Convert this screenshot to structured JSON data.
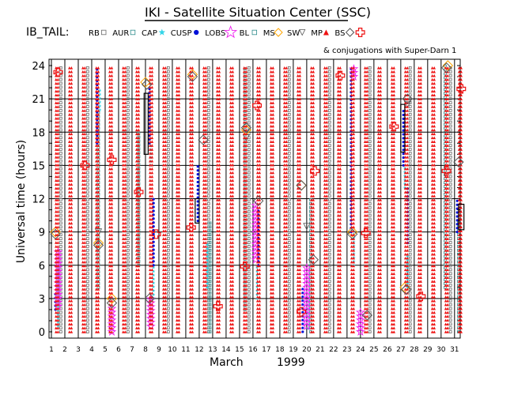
{
  "header": {
    "title": "IKI - Satellite Situation Center (SSC)",
    "satellite": "IB_TAIL:",
    "conjugation_note": "& conjugations with Super-Darn 1"
  },
  "colors": {
    "RB": "#6a6a6a",
    "AUR": "#2e8b8b",
    "CAP": "#35d5e8",
    "CUSP": "#0010d8",
    "LOBS": "#ee22ee",
    "BL": "#2e8b8b",
    "MS": "#ffa500",
    "SW": "#555555",
    "MP": "#ee1111",
    "BS": "#555555",
    "conj": "#ee1111",
    "grid": "#000000"
  },
  "chart_data": {
    "type": "scatter",
    "title": "IKI - Satellite Situation Center (SSC)",
    "xlabel_month": "March",
    "xlabel_year": "1999",
    "ylabel": "Universal time (hours)",
    "ylim": [
      0,
      24
    ],
    "xlim": [
      1,
      31
    ],
    "x_ticks": [
      "1",
      "2",
      "3",
      "4",
      "5",
      "6",
      "7",
      "8",
      "9",
      "10",
      "11",
      "12",
      "13",
      "14",
      "15",
      "16",
      "17",
      "18",
      "19",
      "20",
      "21",
      "22",
      "23",
      "24",
      "25",
      "26",
      "27",
      "28",
      "29",
      "30",
      "31"
    ],
    "y_ticks": [
      "0",
      "3",
      "6",
      "9",
      "12",
      "15",
      "18",
      "21",
      "24"
    ],
    "grid": true,
    "legend": [
      {
        "code": "RB",
        "label": "RB",
        "marker": "square"
      },
      {
        "code": "AUR",
        "label": "AUR",
        "marker": "square"
      },
      {
        "code": "CAP",
        "label": "CAP",
        "marker": "star"
      },
      {
        "code": "CUSP",
        "label": "CUSP",
        "marker": "dot"
      },
      {
        "code": "LOBS",
        "label": "LOBS",
        "marker": "open-star"
      },
      {
        "code": "BL",
        "label": "BL",
        "marker": "square"
      },
      {
        "code": "MS",
        "label": "MS",
        "marker": "diamond"
      },
      {
        "code": "SW",
        "label": "SW",
        "marker": "triangle-down"
      },
      {
        "code": "MP",
        "label": "MP",
        "marker": "triangle-up"
      },
      {
        "code": "BS",
        "label": "BS",
        "marker": "diamond"
      }
    ],
    "series": [
      {
        "name": "RB",
        "segments": [
          {
            "day": 1.7,
            "from": 0,
            "to": 24
          },
          {
            "day": 3.7,
            "from": 0,
            "to": 24
          },
          {
            "day": 6.7,
            "from": 0,
            "to": 24
          },
          {
            "day": 9.7,
            "from": 0,
            "to": 24
          },
          {
            "day": 12.7,
            "from": 0,
            "to": 24
          },
          {
            "day": 15.7,
            "from": 0,
            "to": 24
          },
          {
            "day": 18.7,
            "from": 0,
            "to": 24
          },
          {
            "day": 21.7,
            "from": 0,
            "to": 24
          },
          {
            "day": 24.7,
            "from": 0,
            "to": 24
          },
          {
            "day": 27.7,
            "from": 0,
            "to": 24
          },
          {
            "day": 30.7,
            "from": 0,
            "to": 24
          }
        ]
      },
      {
        "name": "AUR",
        "segments": [
          {
            "day": 4.5,
            "from": 4,
            "to": 20
          },
          {
            "day": 7.5,
            "from": 6,
            "to": 18
          },
          {
            "day": 12.8,
            "from": 0,
            "to": 10
          },
          {
            "day": 15.4,
            "from": 2,
            "to": 24
          },
          {
            "day": 20.3,
            "from": 0,
            "to": 12
          },
          {
            "day": 30.3,
            "from": 4,
            "to": 24
          },
          {
            "day": 31.3,
            "from": 0,
            "to": 10
          }
        ]
      },
      {
        "name": "CAP",
        "segments": [
          {
            "day": 1.5,
            "from": 0.5,
            "to": 6
          },
          {
            "day": 4.6,
            "from": 20,
            "to": 22
          },
          {
            "day": 8.4,
            "from": 15,
            "to": 17
          },
          {
            "day": 8.6,
            "from": 3,
            "to": 6
          },
          {
            "day": 12.6,
            "from": 4,
            "to": 8
          },
          {
            "day": 16.3,
            "from": 3,
            "to": 6
          },
          {
            "day": 20.1,
            "from": 0.3,
            "to": 3
          },
          {
            "day": 23.5,
            "from": 6,
            "to": 9
          },
          {
            "day": 27.3,
            "from": 13,
            "to": 15
          },
          {
            "day": 27.5,
            "from": 4,
            "to": 7
          }
        ]
      },
      {
        "name": "CUSP",
        "segments": [
          {
            "day": 1.3,
            "from": 2,
            "to": 3.5
          },
          {
            "day": 4.4,
            "from": 17,
            "to": 24
          },
          {
            "day": 8.3,
            "from": 17,
            "to": 22
          },
          {
            "day": 8.6,
            "from": 6,
            "to": 12
          },
          {
            "day": 11.9,
            "from": 10,
            "to": 15
          },
          {
            "day": 16.4,
            "from": 6,
            "to": 11
          },
          {
            "day": 19.7,
            "from": 0,
            "to": 4
          },
          {
            "day": 23.3,
            "from": 9,
            "to": 24
          },
          {
            "day": 27.2,
            "from": 15,
            "to": 20
          },
          {
            "day": 27.5,
            "from": 8,
            "to": 13
          },
          {
            "day": 31.2,
            "from": 9,
            "to": 12
          }
        ]
      },
      {
        "name": "LOBS",
        "segments": [
          {
            "day": 1.5,
            "from": 2.3,
            "to": 7.5
          },
          {
            "day": 5.5,
            "from": 0,
            "to": 2.3
          },
          {
            "day": 8.4,
            "from": 0.5,
            "to": 3
          },
          {
            "day": 16.2,
            "from": 6.5,
            "to": 11.5
          },
          {
            "day": 20.0,
            "from": 0.5,
            "to": 6
          },
          {
            "day": 23.5,
            "from": 23,
            "to": 24
          },
          {
            "day": 24.0,
            "from": 0,
            "to": 1.8
          }
        ]
      },
      {
        "name": "MS",
        "points": [
          {
            "day": 1.3,
            "t": 9
          },
          {
            "day": 4.5,
            "t": 8
          },
          {
            "day": 5.5,
            "t": 3
          },
          {
            "day": 8.0,
            "t": 22.5
          },
          {
            "day": 11.5,
            "t": 23.2
          },
          {
            "day": 15.5,
            "t": 18.2
          },
          {
            "day": 19.6,
            "t": 13.2
          },
          {
            "day": 23.4,
            "t": 9
          },
          {
            "day": 27.3,
            "t": 4
          },
          {
            "day": 30.5,
            "t": 24
          }
        ]
      },
      {
        "name": "SW",
        "points": [
          {
            "day": 4.5,
            "t": 9
          },
          {
            "day": 15.5,
            "t": 17.5
          },
          {
            "day": 20.0,
            "t": 9.5
          },
          {
            "day": 27.5,
            "t": 20.5
          }
        ]
      },
      {
        "name": "MP",
        "columns": [
          "1",
          "2",
          "3",
          "4",
          "5",
          "6",
          "7",
          "8",
          "9",
          "10",
          "11",
          "12",
          "13",
          "14",
          "15",
          "16",
          "17",
          "18",
          "19",
          "20",
          "21",
          "22",
          "23",
          "24",
          "25",
          "26",
          "27",
          "28",
          "29",
          "30",
          "31"
        ]
      },
      {
        "name": "BS",
        "points": [
          {
            "day": 1.3,
            "t": 8.8
          },
          {
            "day": 4.5,
            "t": 7.8
          },
          {
            "day": 5.5,
            "t": 2.6
          },
          {
            "day": 8.1,
            "t": 22.3
          },
          {
            "day": 8.3,
            "t": 3
          },
          {
            "day": 11.5,
            "t": 23
          },
          {
            "day": 12.3,
            "t": 17.3
          },
          {
            "day": 15.5,
            "t": 18.4
          },
          {
            "day": 16.4,
            "t": 11.8
          },
          {
            "day": 19.6,
            "t": 13.2
          },
          {
            "day": 20.5,
            "t": 6.5
          },
          {
            "day": 23.4,
            "t": 8.8
          },
          {
            "day": 24.5,
            "t": 1.5
          },
          {
            "day": 27.4,
            "t": 3.8
          },
          {
            "day": 27.5,
            "t": 21
          },
          {
            "day": 30.4,
            "t": 23.8
          },
          {
            "day": 31.3,
            "t": 15.3
          }
        ]
      },
      {
        "name": "conj",
        "points": [
          {
            "day": 1.5,
            "t": 23.4
          },
          {
            "day": 3.5,
            "t": 15
          },
          {
            "day": 5.5,
            "t": 15.5
          },
          {
            "day": 7.5,
            "t": 12.6
          },
          {
            "day": 8.8,
            "t": 8.8
          },
          {
            "day": 11.4,
            "t": 9.4
          },
          {
            "day": 13.4,
            "t": 2.3
          },
          {
            "day": 15.4,
            "t": 5.9
          },
          {
            "day": 16.3,
            "t": 20.4
          },
          {
            "day": 19.6,
            "t": 1.8
          },
          {
            "day": 20.6,
            "t": 14.5
          },
          {
            "day": 22.5,
            "t": 23.1
          },
          {
            "day": 24.4,
            "t": 8.9
          },
          {
            "day": 26.5,
            "t": 18.5
          },
          {
            "day": 28.5,
            "t": 3.2
          },
          {
            "day": 30.4,
            "t": 14.5
          },
          {
            "day": 31.5,
            "t": 21.9
          }
        ]
      }
    ],
    "boxes": [
      {
        "day_from": 7.9,
        "day_to": 8.2,
        "t_from": 16,
        "t_to": 21.5
      },
      {
        "day_from": 11.7,
        "day_to": 12.0,
        "t_from": 9.8,
        "t_to": 12
      },
      {
        "day_from": 27.0,
        "day_to": 27.3,
        "t_from": 16.2,
        "t_to": 20.5
      },
      {
        "day_from": 31.3,
        "day_to": 31.7,
        "t_from": 9.2,
        "t_to": 11.5
      }
    ]
  }
}
